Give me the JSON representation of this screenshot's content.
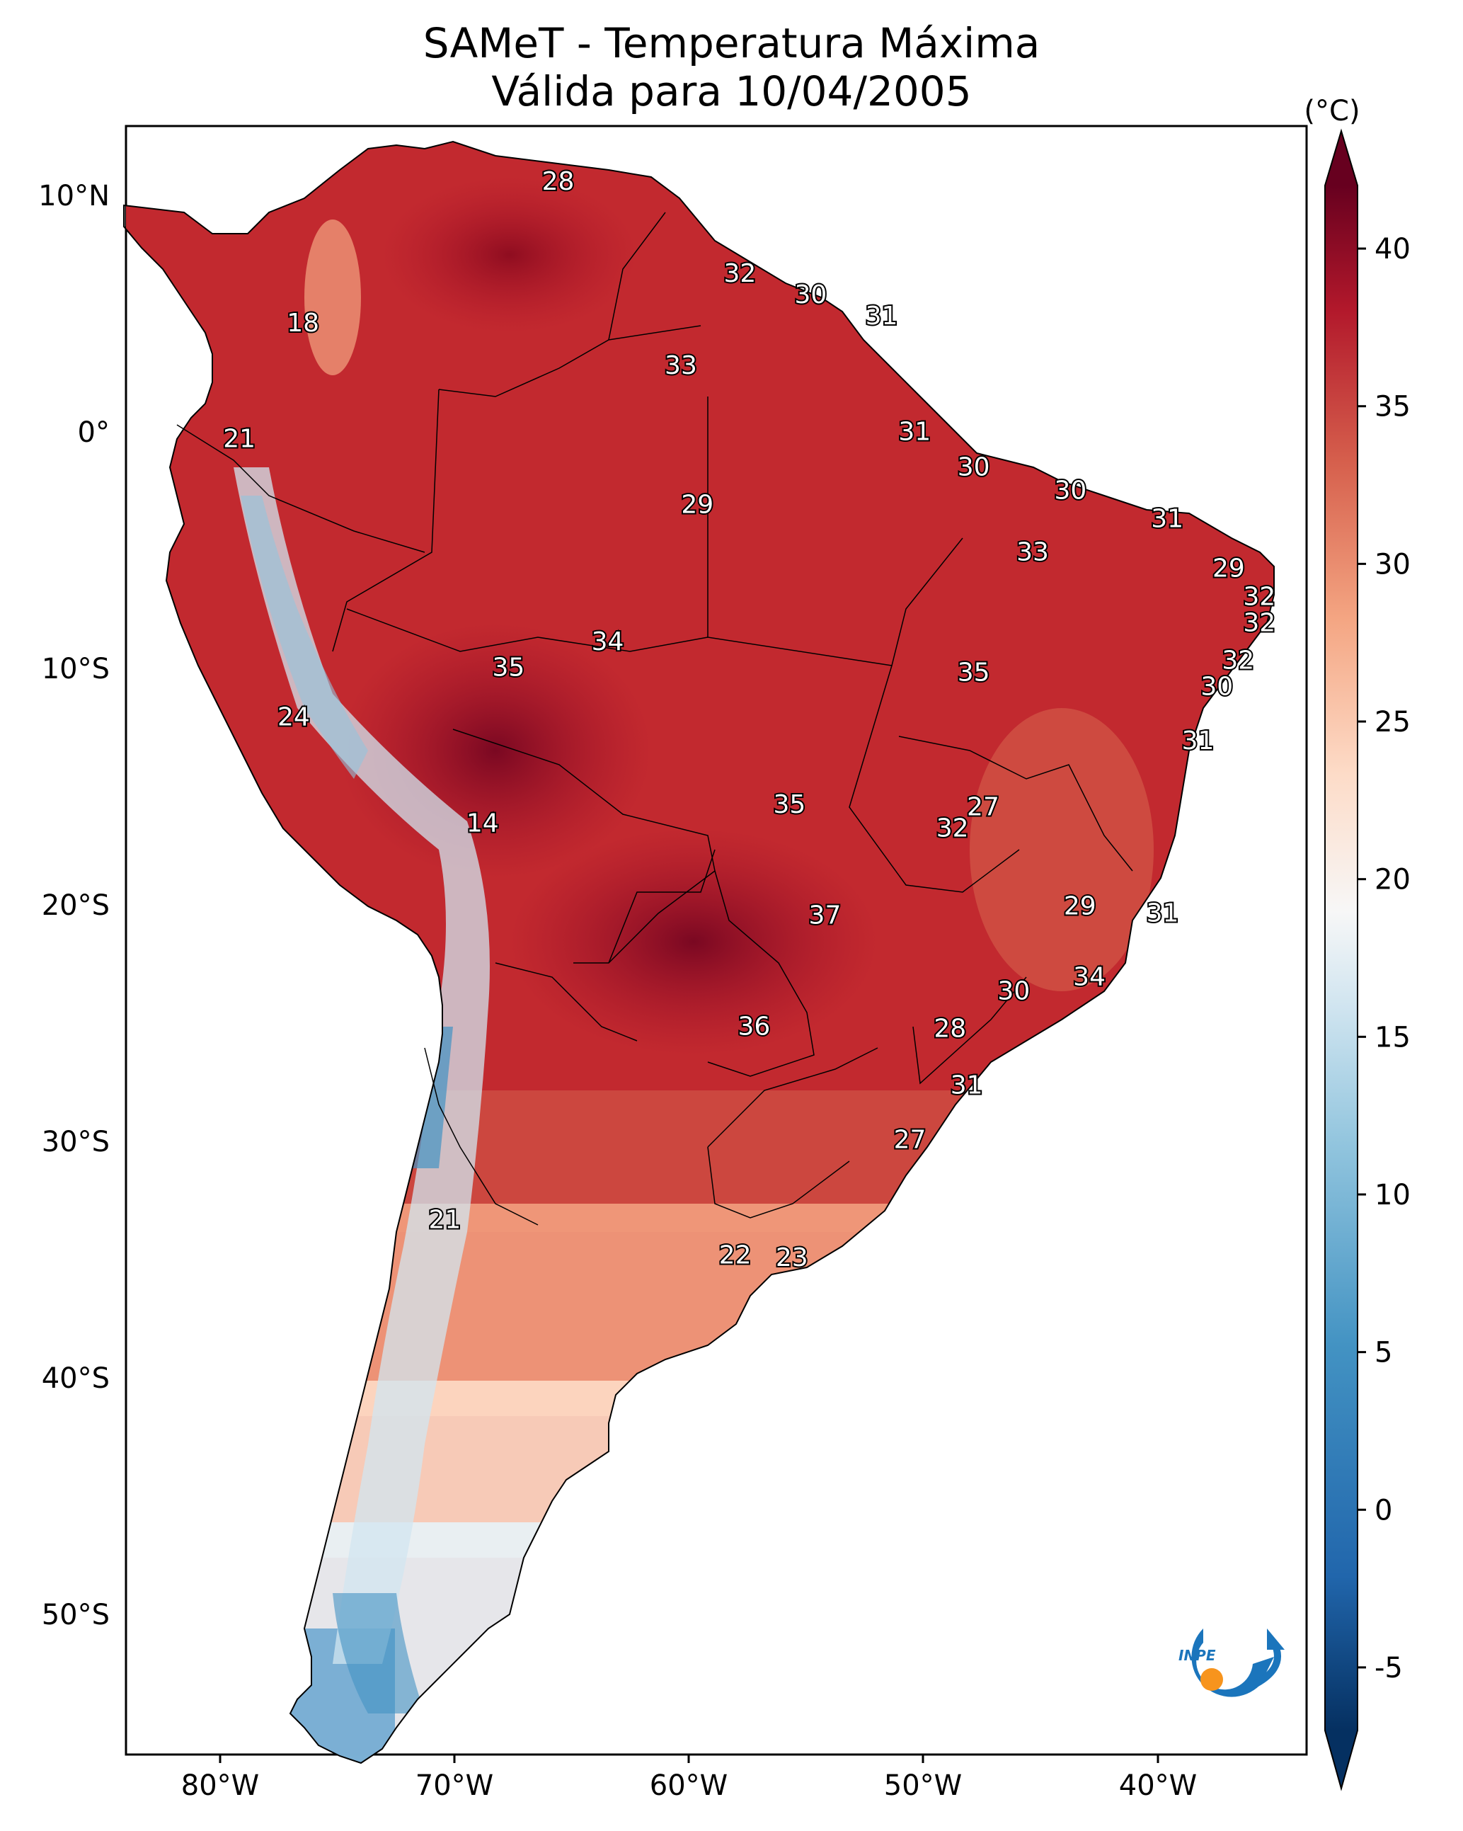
{
  "title": "SAMeT - Temperatura Máxima",
  "subtitle": "Válida para 10/04/2005",
  "colorbar": {
    "unit_label": "(°C)",
    "ticks": [
      "40",
      "35",
      "30",
      "25",
      "20",
      "15",
      "10",
      "5",
      "0",
      "-5"
    ],
    "range": [
      -7,
      42
    ],
    "colormap": "RdBu_r",
    "extend": "both"
  },
  "axes": {
    "lon_ticks": [
      "80°W",
      "70°W",
      "60°W",
      "50°W",
      "40°W"
    ],
    "lat_ticks": [
      "10°N",
      "0°",
      "10°S",
      "20°S",
      "30°S",
      "40°S",
      "50°S"
    ],
    "lon_range": [
      -83,
      -33
    ],
    "lat_range": [
      -56,
      13
    ]
  },
  "logo": {
    "text": "INPE",
    "colors": [
      "#1b75bc",
      "#f7941d"
    ]
  },
  "map_labels": [
    {
      "text": "28",
      "lon": -64.7,
      "lat": 10.6
    },
    {
      "text": "18",
      "lon": -75.5,
      "lat": 4.6
    },
    {
      "text": "32",
      "lon": -57.0,
      "lat": 6.7
    },
    {
      "text": "30",
      "lon": -54.0,
      "lat": 5.8
    },
    {
      "text": "31",
      "lon": -51.0,
      "lat": 4.9
    },
    {
      "text": "33",
      "lon": -59.5,
      "lat": 2.8
    },
    {
      "text": "21",
      "lon": -78.2,
      "lat": -0.3
    },
    {
      "text": "31",
      "lon": -49.6,
      "lat": 0.0
    },
    {
      "text": "30",
      "lon": -47.1,
      "lat": -1.5
    },
    {
      "text": "29",
      "lon": -58.8,
      "lat": -3.1
    },
    {
      "text": "30",
      "lon": -43.0,
      "lat": -2.5
    },
    {
      "text": "31",
      "lon": -38.9,
      "lat": -3.7
    },
    {
      "text": "33",
      "lon": -44.6,
      "lat": -5.1
    },
    {
      "text": "29",
      "lon": -36.3,
      "lat": -5.8
    },
    {
      "text": "32",
      "lon": -35.0,
      "lat": -7.0
    },
    {
      "text": "32",
      "lon": -35.0,
      "lat": -8.1
    },
    {
      "text": "34",
      "lon": -62.6,
      "lat": -8.9
    },
    {
      "text": "35",
      "lon": -66.8,
      "lat": -10.0
    },
    {
      "text": "35",
      "lon": -47.1,
      "lat": -10.2
    },
    {
      "text": "32",
      "lon": -35.9,
      "lat": -9.7
    },
    {
      "text": "30",
      "lon": -36.8,
      "lat": -10.8
    },
    {
      "text": "24",
      "lon": -75.9,
      "lat": -12.1
    },
    {
      "text": "31",
      "lon": -37.6,
      "lat": -13.1
    },
    {
      "text": "27",
      "lon": -46.7,
      "lat": -15.9
    },
    {
      "text": "35",
      "lon": -54.9,
      "lat": -15.8
    },
    {
      "text": "32",
      "lon": -48.0,
      "lat": -16.8
    },
    {
      "text": "14",
      "lon": -67.9,
      "lat": -16.6
    },
    {
      "text": "29",
      "lon": -42.6,
      "lat": -20.1
    },
    {
      "text": "31",
      "lon": -39.1,
      "lat": -20.4
    },
    {
      "text": "37",
      "lon": -53.4,
      "lat": -20.5
    },
    {
      "text": "34",
      "lon": -42.2,
      "lat": -23.1
    },
    {
      "text": "30",
      "lon": -45.4,
      "lat": -23.7
    },
    {
      "text": "36",
      "lon": -56.4,
      "lat": -25.2
    },
    {
      "text": "28",
      "lon": -48.1,
      "lat": -25.3
    },
    {
      "text": "31",
      "lon": -47.4,
      "lat": -27.7
    },
    {
      "text": "27",
      "lon": -49.8,
      "lat": -30.0
    },
    {
      "text": "21",
      "lon": -69.5,
      "lat": -33.4
    },
    {
      "text": "22",
      "lon": -57.2,
      "lat": -34.9
    },
    {
      "text": "23",
      "lon": -54.8,
      "lat": -35.0
    }
  ]
}
